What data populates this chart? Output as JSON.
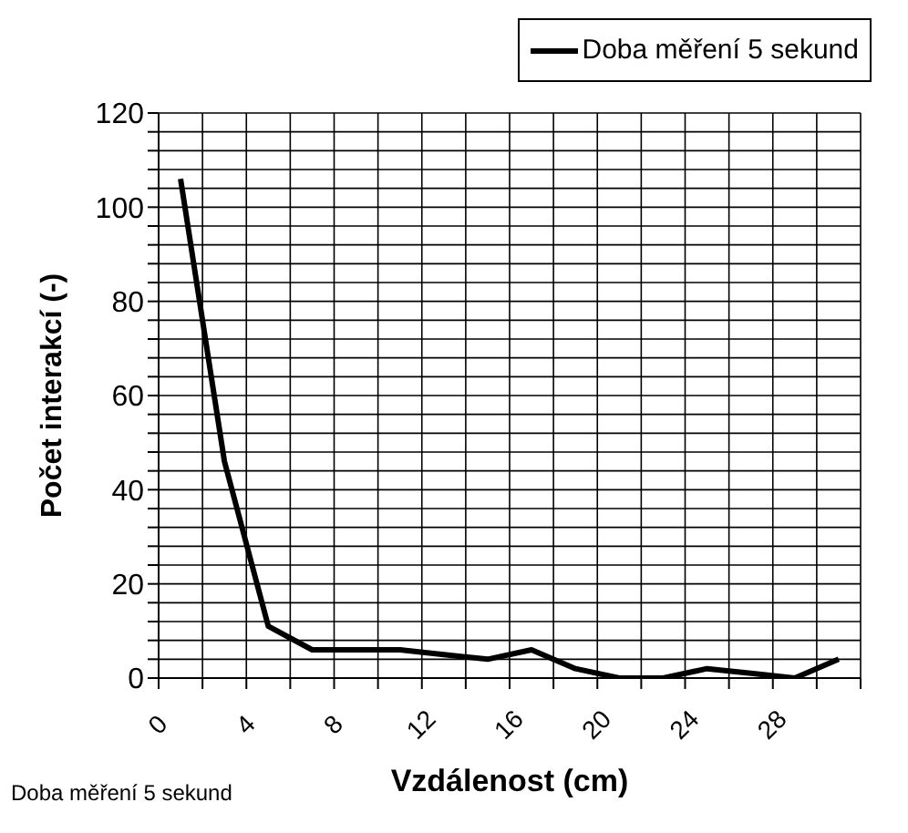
{
  "chart_data": {
    "type": "line",
    "xlabel": "Vzdálenost (cm)",
    "ylabel": "Počet interakcí (-)",
    "annotations": [
      "Doba měření 5 sekund"
    ],
    "x": [
      1,
      3,
      5,
      7,
      9,
      11,
      13,
      15,
      17,
      19,
      21,
      23,
      25,
      27,
      29,
      31
    ],
    "series": [
      {
        "name": "Doba měření 5 sekund",
        "color": "#000000",
        "values": [
          106,
          46,
          11,
          6,
          6,
          6,
          5,
          4,
          6,
          2,
          0,
          0,
          2,
          1,
          0,
          4
        ]
      }
    ],
    "xlim": [
      0,
      32
    ],
    "xticks": [
      0,
      {
        "value": 2,
        "label": null
      },
      4,
      {
        "value": 6,
        "label": null
      },
      8,
      {
        "value": 10,
        "label": null
      },
      12,
      {
        "value": 14,
        "label": null
      },
      16,
      {
        "value": 18,
        "label": null
      },
      20,
      {
        "value": 22,
        "label": null
      },
      24,
      {
        "value": 26,
        "label": null
      },
      28,
      {
        "value": 30,
        "label": null
      },
      {
        "value": 32,
        "label": null
      }
    ],
    "ylim": [
      0,
      120
    ],
    "yticks": [
      0,
      {
        "value": 4,
        "label": null
      },
      {
        "value": 8,
        "label": null
      },
      {
        "value": 12,
        "label": null
      },
      {
        "value": 16,
        "label": null
      },
      20,
      {
        "value": 24,
        "label": null
      },
      {
        "value": 28,
        "label": null
      },
      {
        "value": 32,
        "label": null
      },
      {
        "value": 36,
        "label": null
      },
      40,
      {
        "value": 44,
        "label": null
      },
      {
        "value": 48,
        "label": null
      },
      {
        "value": 52,
        "label": null
      },
      {
        "value": 56,
        "label": null
      },
      60,
      {
        "value": 64,
        "label": null
      },
      {
        "value": 68,
        "label": null
      },
      {
        "value": 72,
        "label": null
      },
      {
        "value": 76,
        "label": null
      },
      80,
      {
        "value": 84,
        "label": null
      },
      {
        "value": 88,
        "label": null
      },
      {
        "value": 92,
        "label": null
      },
      {
        "value": 96,
        "label": null
      },
      100,
      {
        "value": 104,
        "label": null
      },
      {
        "value": 108,
        "label": null
      },
      {
        "value": 112,
        "label": null
      },
      {
        "value": 116,
        "label": null
      },
      120
    ],
    "grid": true,
    "legend": "top right",
    "marker": "none",
    "line_style": "solid"
  }
}
